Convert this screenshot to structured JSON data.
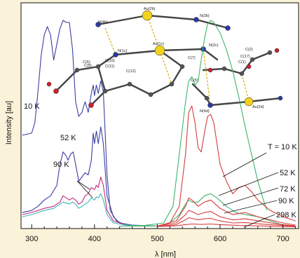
{
  "chart_data": {
    "type": "line",
    "xlabel": "λ [nm]",
    "ylabel": "Intensity [au]",
    "xlim": [
      283,
      725
    ],
    "ylim": [
      0,
      1.0
    ],
    "x_ticks": [
      300,
      400,
      500,
      600,
      700
    ],
    "grid": false,
    "series": [
      {
        "label": "10 K",
        "group": "excitation",
        "color": "#3b3fa0",
        "points": [
          [
            285,
            0.44
          ],
          [
            300,
            0.45
          ],
          [
            305,
            0.5
          ],
          [
            310,
            0.65
          ],
          [
            315,
            0.82
          ],
          [
            320,
            0.92
          ],
          [
            325,
            0.96
          ],
          [
            330,
            0.92
          ],
          [
            335,
            0.8
          ],
          [
            345,
            0.95
          ],
          [
            350,
            0.99
          ],
          [
            355,
            0.98
          ],
          [
            360,
            0.98
          ],
          [
            365,
            0.85
          ],
          [
            370,
            0.6
          ],
          [
            375,
            0.53
          ],
          [
            380,
            0.55
          ],
          [
            385,
            0.6
          ],
          [
            390,
            0.55
          ],
          [
            395,
            0.64
          ],
          [
            398,
            0.68
          ],
          [
            400,
            0.63
          ],
          [
            403,
            0.68
          ],
          [
            406,
            0.64
          ],
          [
            410,
            0.7
          ],
          [
            414,
            0.65
          ],
          [
            420,
            0.25
          ],
          [
            425,
            0.08
          ],
          [
            435,
            0.03
          ],
          [
            450,
            0.01
          ],
          [
            470,
            0.005
          ],
          [
            500,
            0.005
          ]
        ]
      },
      {
        "label": "52 K",
        "group": "excitation",
        "color": "#3b3fa0",
        "points": [
          [
            285,
            0.07
          ],
          [
            300,
            0.08
          ],
          [
            310,
            0.1
          ],
          [
            320,
            0.13
          ],
          [
            330,
            0.15
          ],
          [
            340,
            0.2
          ],
          [
            345,
            0.3
          ],
          [
            350,
            0.36
          ],
          [
            355,
            0.34
          ],
          [
            358,
            0.32
          ],
          [
            362,
            0.35
          ],
          [
            366,
            0.36
          ],
          [
            370,
            0.3
          ],
          [
            375,
            0.22
          ],
          [
            380,
            0.24
          ],
          [
            385,
            0.26
          ],
          [
            390,
            0.25
          ],
          [
            395,
            0.32
          ],
          [
            398,
            0.45
          ],
          [
            400,
            0.4
          ],
          [
            403,
            0.46
          ],
          [
            406,
            0.4
          ],
          [
            410,
            0.48
          ],
          [
            414,
            0.4
          ],
          [
            420,
            0.15
          ],
          [
            430,
            0.05
          ],
          [
            440,
            0.02
          ],
          [
            460,
            0.01
          ],
          [
            500,
            0.005
          ]
        ]
      },
      {
        "label": "72 K",
        "group": "excitation",
        "color": "#c22a7a",
        "points": [
          [
            285,
            0.06
          ],
          [
            300,
            0.07
          ],
          [
            320,
            0.09
          ],
          [
            335,
            0.1
          ],
          [
            345,
            0.12
          ],
          [
            350,
            0.15
          ],
          [
            355,
            0.14
          ],
          [
            360,
            0.13
          ],
          [
            365,
            0.14
          ],
          [
            370,
            0.13
          ],
          [
            375,
            0.11
          ],
          [
            380,
            0.12
          ],
          [
            385,
            0.15
          ],
          [
            390,
            0.16
          ],
          [
            395,
            0.19
          ],
          [
            400,
            0.18
          ],
          [
            403,
            0.2
          ],
          [
            406,
            0.19
          ],
          [
            410,
            0.24
          ],
          [
            414,
            0.2
          ],
          [
            420,
            0.08
          ],
          [
            430,
            0.03
          ],
          [
            450,
            0.01
          ],
          [
            500,
            0.005
          ]
        ]
      },
      {
        "label": "90 K",
        "group": "excitation",
        "color": "#38b8b6",
        "points": [
          [
            285,
            0.05
          ],
          [
            300,
            0.06
          ],
          [
            320,
            0.08
          ],
          [
            335,
            0.09
          ],
          [
            345,
            0.11
          ],
          [
            350,
            0.12
          ],
          [
            355,
            0.115
          ],
          [
            360,
            0.11
          ],
          [
            365,
            0.12
          ],
          [
            370,
            0.11
          ],
          [
            375,
            0.09
          ],
          [
            380,
            0.1
          ],
          [
            385,
            0.11
          ],
          [
            390,
            0.12
          ],
          [
            395,
            0.14
          ],
          [
            400,
            0.13
          ],
          [
            403,
            0.145
          ],
          [
            406,
            0.14
          ],
          [
            410,
            0.16
          ],
          [
            414,
            0.13
          ],
          [
            420,
            0.06
          ],
          [
            430,
            0.02
          ],
          [
            450,
            0.01
          ],
          [
            500,
            0.005
          ]
        ]
      },
      {
        "label": "10 K",
        "group": "emission",
        "color": "#3cb56a",
        "points": [
          [
            440,
            0.005
          ],
          [
            480,
            0.008
          ],
          [
            510,
            0.02
          ],
          [
            525,
            0.1
          ],
          [
            535,
            0.35
          ],
          [
            545,
            0.6
          ],
          [
            550,
            0.7
          ],
          [
            555,
            0.72
          ],
          [
            560,
            0.68
          ],
          [
            565,
            0.7
          ],
          [
            570,
            0.8
          ],
          [
            575,
            0.9
          ],
          [
            580,
            0.97
          ],
          [
            585,
            0.99
          ],
          [
            590,
            0.98
          ],
          [
            600,
            0.93
          ],
          [
            610,
            0.85
          ],
          [
            620,
            0.75
          ],
          [
            630,
            0.62
          ],
          [
            640,
            0.48
          ],
          [
            650,
            0.35
          ],
          [
            660,
            0.22
          ],
          [
            670,
            0.12
          ],
          [
            675,
            0.08
          ]
        ]
      },
      {
        "label": "52 K",
        "group": "emission",
        "color": "#3cb56a",
        "points": [
          [
            440,
            0.005
          ],
          [
            500,
            0.005
          ],
          [
            520,
            0.02
          ],
          [
            535,
            0.06
          ],
          [
            545,
            0.11
          ],
          [
            550,
            0.13
          ],
          [
            555,
            0.12
          ],
          [
            565,
            0.12
          ],
          [
            575,
            0.15
          ],
          [
            585,
            0.16
          ],
          [
            595,
            0.14
          ],
          [
            610,
            0.1
          ],
          [
            625,
            0.07
          ],
          [
            640,
            0.06
          ],
          [
            660,
            0.05
          ],
          [
            680,
            0.03
          ],
          [
            700,
            0.01
          ]
        ]
      },
      {
        "label": "T = 10 K",
        "group": "emission",
        "color": "#d63c3c",
        "points": [
          [
            500,
            0.005
          ],
          [
            520,
            0.02
          ],
          [
            535,
            0.1
          ],
          [
            545,
            0.35
          ],
          [
            550,
            0.55
          ],
          [
            555,
            0.58
          ],
          [
            560,
            0.5
          ],
          [
            565,
            0.38
          ],
          [
            570,
            0.36
          ],
          [
            575,
            0.45
          ],
          [
            580,
            0.53
          ],
          [
            585,
            0.54
          ],
          [
            590,
            0.5
          ],
          [
            600,
            0.3
          ],
          [
            610,
            0.22
          ],
          [
            620,
            0.16
          ],
          [
            630,
            0.19
          ],
          [
            640,
            0.2
          ],
          [
            650,
            0.17
          ],
          [
            660,
            0.13
          ],
          [
            680,
            0.08
          ],
          [
            700,
            0.05
          ],
          [
            720,
            0.03
          ]
        ]
      },
      {
        "label": "52 K",
        "group": "emission",
        "color": "#d63c3c",
        "points": [
          [
            500,
            0.005
          ],
          [
            530,
            0.03
          ],
          [
            545,
            0.1
          ],
          [
            550,
            0.14
          ],
          [
            555,
            0.13
          ],
          [
            565,
            0.1
          ],
          [
            575,
            0.12
          ],
          [
            585,
            0.13
          ],
          [
            600,
            0.09
          ],
          [
            620,
            0.06
          ],
          [
            640,
            0.07
          ],
          [
            660,
            0.05
          ],
          [
            700,
            0.02
          ],
          [
            720,
            0.01
          ]
        ]
      },
      {
        "label": "72 K",
        "group": "emission",
        "color": "#d63c3c",
        "points": [
          [
            500,
            0.005
          ],
          [
            530,
            0.02
          ],
          [
            545,
            0.06
          ],
          [
            550,
            0.08
          ],
          [
            555,
            0.075
          ],
          [
            565,
            0.06
          ],
          [
            575,
            0.07
          ],
          [
            585,
            0.075
          ],
          [
            600,
            0.05
          ],
          [
            620,
            0.035
          ],
          [
            640,
            0.04
          ],
          [
            660,
            0.03
          ],
          [
            700,
            0.012
          ],
          [
            720,
            0.006
          ]
        ]
      },
      {
        "label": "90 K",
        "group": "emission",
        "color": "#d63c3c",
        "points": [
          [
            500,
            0.004
          ],
          [
            530,
            0.012
          ],
          [
            545,
            0.035
          ],
          [
            550,
            0.045
          ],
          [
            555,
            0.042
          ],
          [
            565,
            0.035
          ],
          [
            575,
            0.04
          ],
          [
            585,
            0.042
          ],
          [
            600,
            0.03
          ],
          [
            620,
            0.02
          ],
          [
            640,
            0.022
          ],
          [
            660,
            0.016
          ],
          [
            700,
            0.008
          ],
          [
            720,
            0.004
          ]
        ]
      },
      {
        "label": "298 K",
        "group": "emission",
        "color": "#d63c3c",
        "points": [
          [
            500,
            0.003
          ],
          [
            530,
            0.006
          ],
          [
            545,
            0.012
          ],
          [
            555,
            0.015
          ],
          [
            570,
            0.013
          ],
          [
            585,
            0.015
          ],
          [
            600,
            0.012
          ],
          [
            630,
            0.008
          ],
          [
            660,
            0.006
          ],
          [
            700,
            0.003
          ],
          [
            720,
            0.002
          ]
        ]
      }
    ],
    "annotations": {
      "ex_10K": "10 K",
      "ex_52K": "52 K",
      "ex_90K": "90 K",
      "em_T10K": "T = 10 K",
      "em_52K": "52 K",
      "em_72K": "72 K",
      "em_90K": "90 K",
      "em_298K": "298 K"
    },
    "structure_labels": [
      "N(4b)",
      "Au(2b)",
      "N(3b)",
      "N(1c)",
      "Au(1c)",
      "C(10)",
      "C(11)",
      "C(12)",
      "C(8)",
      "C(6)",
      "C(7)",
      "C(5)",
      "C(1)",
      "C(17)",
      "C(2)",
      "N(2c)",
      "N(4d)",
      "Au(2d)"
    ]
  }
}
